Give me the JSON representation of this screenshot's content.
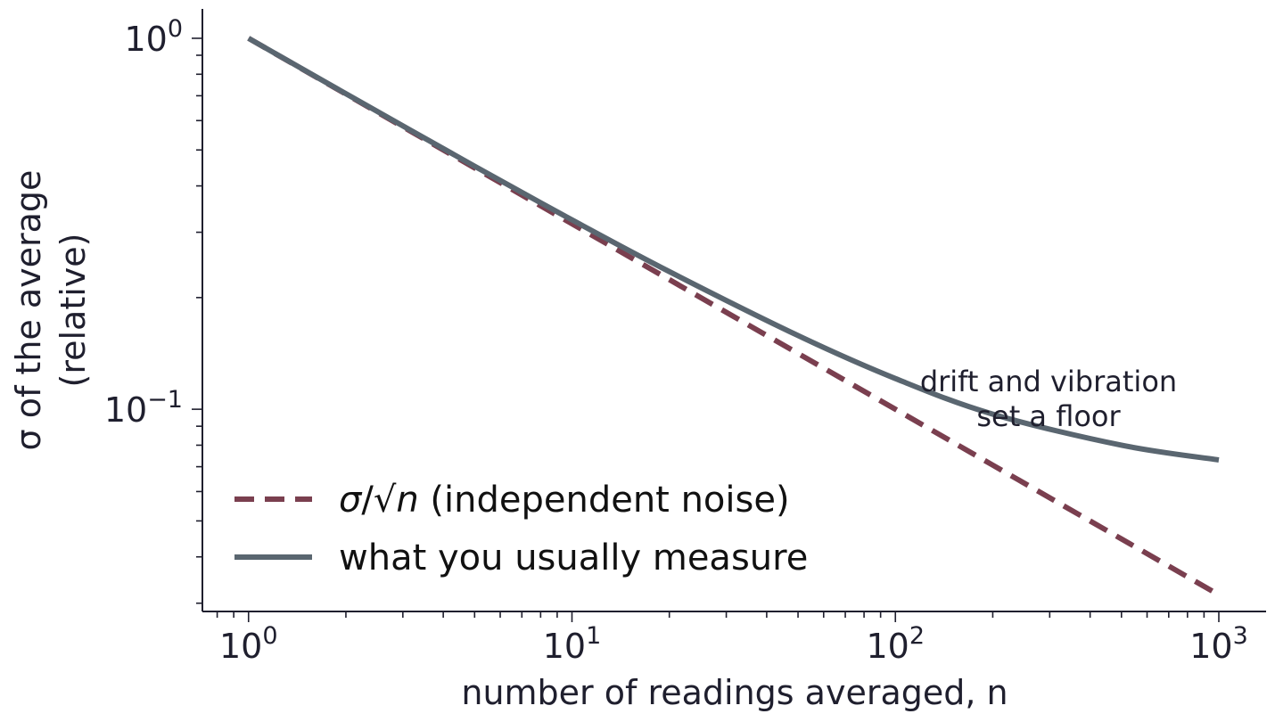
{
  "chart_data": {
    "type": "line",
    "xscale": "log",
    "yscale": "log",
    "xlim": [
      0.72,
      1400
    ],
    "ylim": [
      0.0285,
      1.2
    ],
    "xlabel": "number of readings averaged, n",
    "ylabel_line1": "σ of the average",
    "ylabel_line2": "(relative)",
    "x_ticks": [
      {
        "value": 1,
        "base": "10",
        "exp": "0"
      },
      {
        "value": 10,
        "base": "10",
        "exp": "1"
      },
      {
        "value": 100,
        "base": "10",
        "exp": "2"
      },
      {
        "value": 1000,
        "base": "10",
        "exp": "3"
      }
    ],
    "y_ticks": [
      {
        "value": 1,
        "base": "10",
        "exp": "0"
      },
      {
        "value": 0.1,
        "base": "10",
        "exp": "−1"
      }
    ],
    "series": [
      {
        "name": "σ/√n (independent noise)",
        "legend_pre": "σ/√",
        "legend_var": "n",
        "legend_post": " (independent noise)",
        "style": "dashed",
        "color": "#7a3f4f",
        "x": [
          1,
          2,
          5,
          10,
          20,
          50,
          100,
          200,
          500,
          1000
        ],
        "y": [
          1.0,
          0.7071,
          0.4472,
          0.3162,
          0.2236,
          0.1414,
          0.1,
          0.0707,
          0.0447,
          0.0316
        ]
      },
      {
        "name": "what you usually measure",
        "style": "solid",
        "color": "#5a6670",
        "x": [
          1,
          2,
          5,
          10,
          20,
          50,
          100,
          200,
          500,
          1000
        ],
        "y": [
          1.0,
          0.709,
          0.452,
          0.324,
          0.235,
          0.158,
          0.121,
          0.097,
          0.08,
          0.073
        ]
      }
    ],
    "annotation": {
      "line1": "drift and vibration",
      "line2": "set a floor"
    },
    "legend_position": "lower-left",
    "grid": false
  }
}
